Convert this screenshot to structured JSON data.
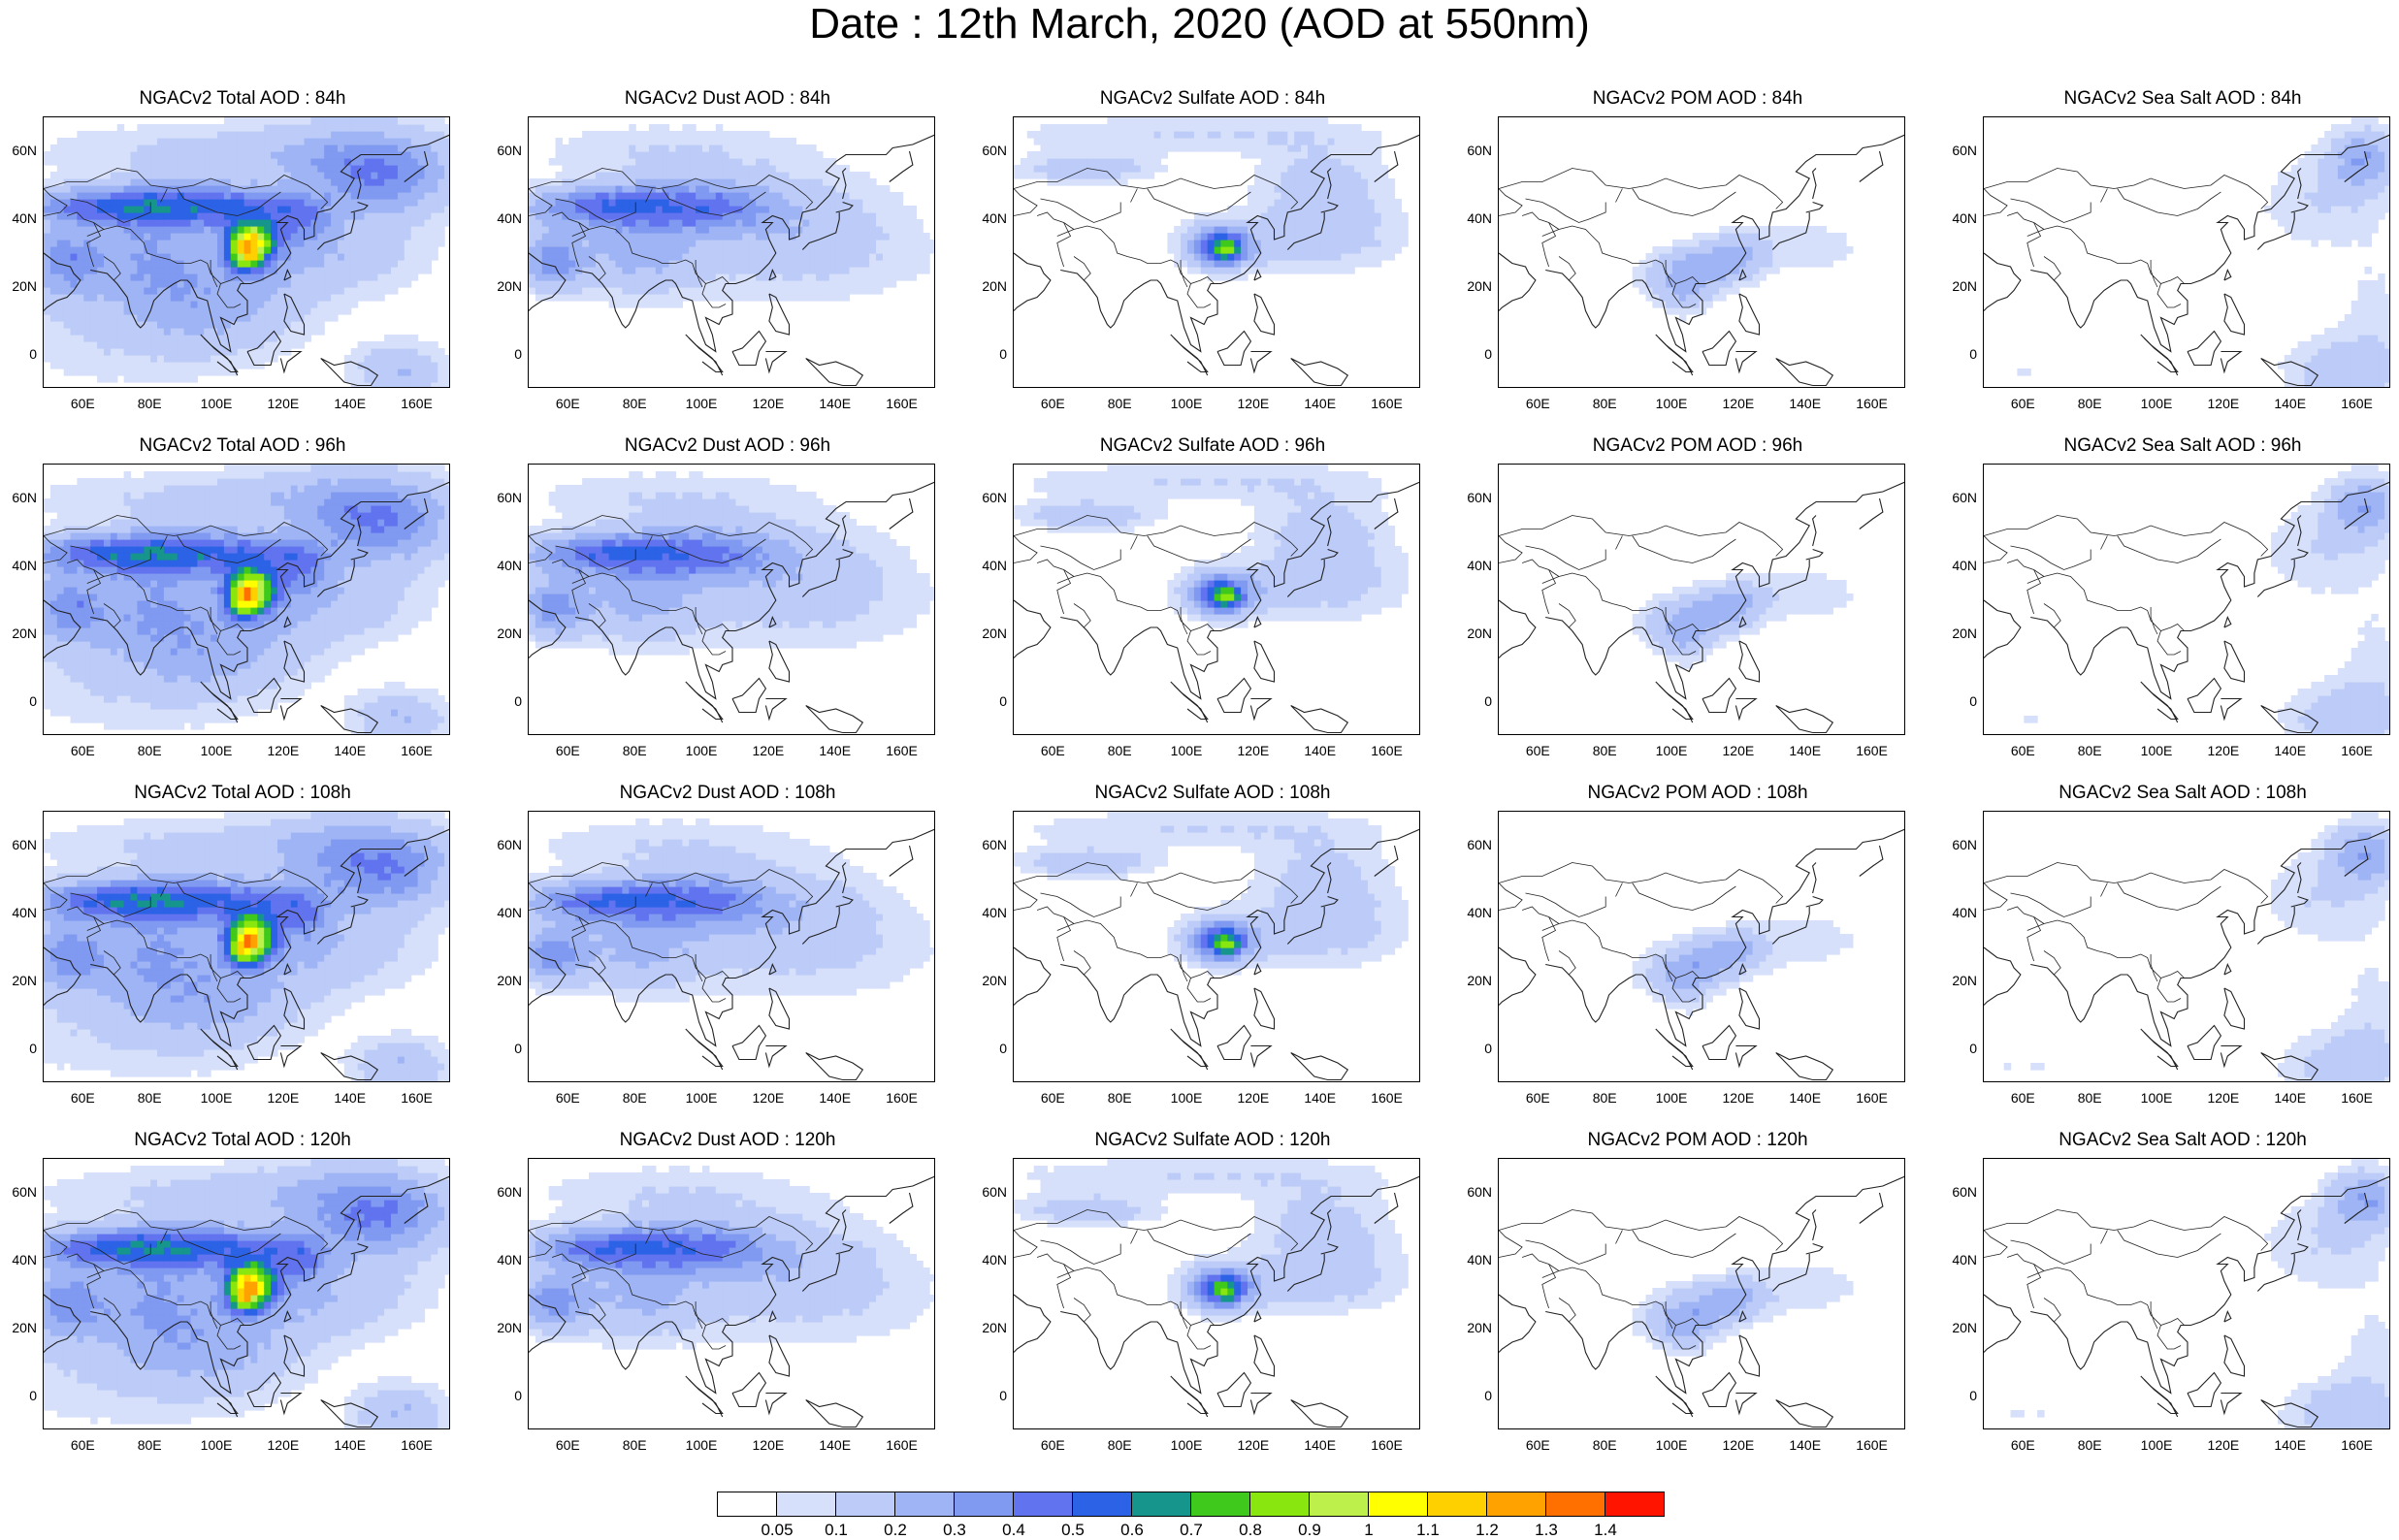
{
  "page_title": "Date : 12th March, 2020 (AOD at 550nm)",
  "x_ticks": [
    "60E",
    "80E",
    "100E",
    "120E",
    "140E",
    "160E"
  ],
  "y_ticks": [
    "60N",
    "40N",
    "20N",
    "0"
  ],
  "colorbar": {
    "colors": [
      "#ffffff",
      "#d7e0fa",
      "#bccbf7",
      "#9fb4f4",
      "#8099f1",
      "#6173ee",
      "#2b62e6",
      "#16958c",
      "#3ec91c",
      "#8ae60f",
      "#bdf04a",
      "#ffff00",
      "#ffd000",
      "#ffa200",
      "#ff7000",
      "#ff1400"
    ],
    "labels": [
      "0.05",
      "0.1",
      "0.2",
      "0.3",
      "0.4",
      "0.5",
      "0.6",
      "0.7",
      "0.8",
      "0.9",
      "1",
      "1.1",
      "1.2",
      "1.3",
      "1.4"
    ]
  },
  "panels": [
    {
      "title": "NGACv2 Total AOD : 84h",
      "field": "total"
    },
    {
      "title": "NGACv2 Dust AOD : 84h",
      "field": "dust"
    },
    {
      "title": "NGACv2 Sulfate AOD : 84h",
      "field": "sulfate"
    },
    {
      "title": "NGACv2 POM AOD : 84h",
      "field": "pom"
    },
    {
      "title": "NGACv2 Sea Salt AOD : 84h",
      "field": "seasalt"
    },
    {
      "title": "NGACv2 Total AOD : 96h",
      "field": "total"
    },
    {
      "title": "NGACv2 Dust AOD : 96h",
      "field": "dust"
    },
    {
      "title": "NGACv2 Sulfate AOD : 96h",
      "field": "sulfate"
    },
    {
      "title": "NGACv2 POM AOD : 96h",
      "field": "pom"
    },
    {
      "title": "NGACv2 Sea Salt AOD : 96h",
      "field": "seasalt"
    },
    {
      "title": "NGACv2 Total AOD : 108h",
      "field": "total"
    },
    {
      "title": "NGACv2 Dust AOD : 108h",
      "field": "dust"
    },
    {
      "title": "NGACv2 Sulfate AOD : 108h",
      "field": "sulfate"
    },
    {
      "title": "NGACv2 POM AOD : 108h",
      "field": "pom"
    },
    {
      "title": "NGACv2 Sea Salt AOD : 108h",
      "field": "seasalt"
    },
    {
      "title": "NGACv2 Total AOD : 120h",
      "field": "total"
    },
    {
      "title": "NGACv2 Dust AOD : 120h",
      "field": "dust"
    },
    {
      "title": "NGACv2 Sulfate AOD : 120h",
      "field": "sulfate"
    },
    {
      "title": "NGACv2 POM AOD : 120h",
      "field": "pom"
    },
    {
      "title": "NGACv2 Sea Salt  AOD : 120h",
      "field": "seasalt"
    }
  ]
}
